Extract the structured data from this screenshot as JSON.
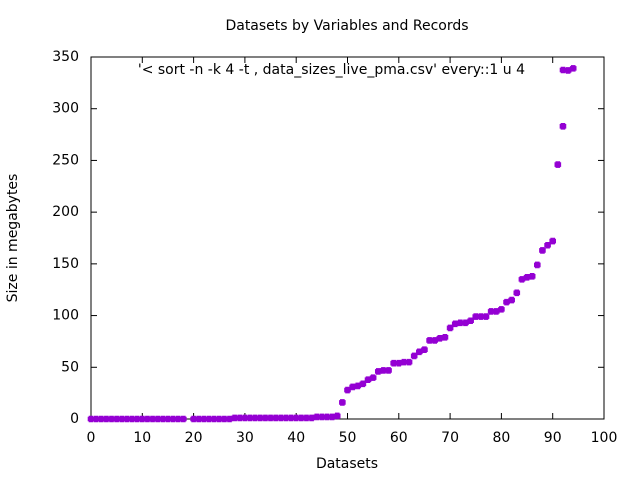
{
  "chart_data": {
    "type": "scatter",
    "title": "Datasets by Variables and Records",
    "x_label": "Datasets",
    "y_label": "Size in megabytes",
    "xlim": [
      0,
      100
    ],
    "xticks": [
      0,
      10,
      20,
      30,
      40,
      50,
      60,
      70,
      80,
      90,
      100
    ],
    "ylim": [
      0,
      350
    ],
    "yticks": [
      0,
      50,
      100,
      150,
      200,
      250,
      300,
      350
    ],
    "legend": "top-right",
    "series": [
      {
        "name": "'< sort -n -k 4 -t , data_sizes_live_pma.csv' every::1 u 4",
        "color": "#9400d3",
        "x": [
          0,
          1,
          2,
          3,
          4,
          5,
          6,
          7,
          8,
          9,
          10,
          11,
          12,
          13,
          14,
          15,
          16,
          17,
          18,
          20,
          21,
          22,
          23,
          24,
          25,
          26,
          27,
          28,
          29,
          30,
          31,
          32,
          33,
          34,
          35,
          36,
          37,
          38,
          39,
          40,
          41,
          42,
          43,
          44,
          45,
          46,
          47,
          48,
          49,
          50,
          51,
          52,
          53,
          54,
          55,
          56,
          57,
          58,
          59,
          60,
          61,
          62,
          63,
          64,
          65,
          66,
          67,
          68,
          69,
          70,
          71,
          72,
          73,
          74,
          75,
          76,
          77,
          78,
          79,
          80,
          81,
          82,
          83,
          84,
          85,
          86,
          87,
          88,
          89,
          90,
          91,
          92,
          93,
          94
        ],
        "values": [
          0,
          0,
          0,
          0,
          0,
          0,
          0,
          0,
          0,
          0,
          0,
          0,
          0,
          0,
          0,
          0,
          0,
          0,
          0,
          0,
          0,
          0,
          0,
          0,
          0,
          0,
          0,
          1,
          1,
          1,
          1,
          1,
          1,
          1,
          1,
          1,
          1,
          1,
          1,
          1,
          1,
          1,
          1,
          2,
          2,
          2,
          2,
          3,
          16,
          28,
          31,
          32,
          34,
          38,
          40,
          46,
          47,
          47,
          54,
          54,
          55,
          55,
          61,
          65,
          67,
          76,
          76,
          78,
          79,
          88,
          92,
          93,
          93,
          95,
          99,
          99,
          99,
          104,
          104,
          106,
          113,
          115,
          122,
          135,
          137,
          138,
          149,
          163,
          168,
          172,
          246,
          283,
          337,
          339
        ]
      }
    ]
  }
}
